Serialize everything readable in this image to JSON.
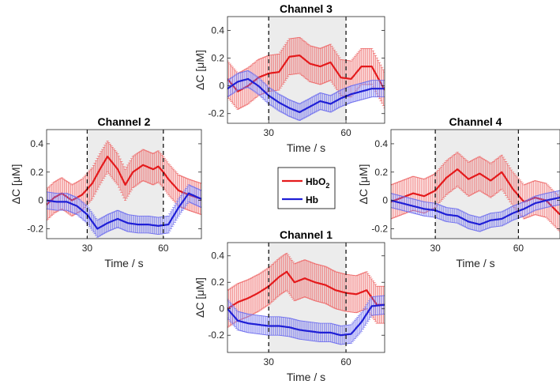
{
  "figure": {
    "legend": {
      "entries": [
        {
          "label": "HbO",
          "subscript": "2",
          "color": "#e41a1c"
        },
        {
          "label": "Hb",
          "subscript": "",
          "color": "#1f1fd6"
        }
      ]
    }
  },
  "colors": {
    "hbo2": "#e41a1c",
    "hb": "#1f1fd6",
    "hbo2_err": "#ee6a6a",
    "hb_err": "#7070ee",
    "stim_shade": "#ececec"
  },
  "chart_data": [
    {
      "id": "ch3",
      "type": "line",
      "title": "Channel 3",
      "xlabel": "Time  / s",
      "ylabel": "ΔC  [μM]",
      "xlim": [
        14,
        75
      ],
      "ylim": [
        -0.27,
        0.5
      ],
      "xticks": [
        30,
        60
      ],
      "yticks": [
        -0.2,
        0,
        0.2,
        0.4
      ],
      "ytick_labels": [
        "-0.2",
        "0",
        "0.2",
        "0.4"
      ],
      "stimulus": [
        30,
        60
      ],
      "series": [
        {
          "name": "HbO2",
          "x": [
            14,
            18,
            22,
            26,
            30,
            34,
            38,
            42,
            46,
            50,
            54,
            58,
            62,
            66,
            70,
            75
          ],
          "y": [
            0.05,
            -0.04,
            0.0,
            0.06,
            0.09,
            0.1,
            0.21,
            0.22,
            0.16,
            0.14,
            0.17,
            0.06,
            0.05,
            0.14,
            0.14,
            -0.03
          ],
          "err": 0.13
        },
        {
          "name": "Hb",
          "x": [
            14,
            18,
            22,
            26,
            30,
            34,
            38,
            42,
            46,
            50,
            54,
            58,
            62,
            66,
            70,
            75
          ],
          "y": [
            -0.02,
            0.03,
            0.05,
            0.0,
            -0.07,
            -0.12,
            -0.16,
            -0.19,
            -0.15,
            -0.11,
            -0.13,
            -0.09,
            -0.06,
            -0.04,
            -0.02,
            -0.02
          ],
          "err": 0.06
        }
      ]
    },
    {
      "id": "ch2",
      "type": "line",
      "title": "Channel 2",
      "xlabel": "Time  / s",
      "ylabel": "ΔC  [μM]",
      "xlim": [
        14,
        75
      ],
      "ylim": [
        -0.27,
        0.5
      ],
      "xticks": [
        30,
        60
      ],
      "yticks": [
        -0.2,
        0,
        0.2,
        0.4
      ],
      "ytick_labels": [
        "-0.2",
        "0",
        "0.2",
        "0.4"
      ],
      "stimulus": [
        30,
        60
      ],
      "series": [
        {
          "name": "HbO2",
          "x": [
            14,
            17,
            20,
            24,
            28,
            32,
            35,
            38,
            42,
            45,
            48,
            52,
            56,
            58,
            60,
            62,
            66,
            70,
            75
          ],
          "y": [
            -0.03,
            0.02,
            0.05,
            0.0,
            0.04,
            0.12,
            0.22,
            0.31,
            0.22,
            0.11,
            0.2,
            0.25,
            0.22,
            0.24,
            0.2,
            0.15,
            0.07,
            0.04,
            0.01
          ],
          "err": 0.11
        },
        {
          "name": "Hb",
          "x": [
            14,
            18,
            22,
            26,
            30,
            34,
            38,
            42,
            46,
            50,
            54,
            58,
            62,
            66,
            70,
            75
          ],
          "y": [
            0.0,
            -0.01,
            -0.01,
            -0.04,
            -0.1,
            -0.2,
            -0.16,
            -0.13,
            -0.16,
            -0.17,
            -0.17,
            -0.18,
            -0.17,
            -0.05,
            0.05,
            0.01
          ],
          "err": 0.06
        }
      ]
    },
    {
      "id": "ch4",
      "type": "line",
      "title": "Channel 4",
      "xlabel": "Time  / s",
      "ylabel": "ΔC  [μM]",
      "xlim": [
        14,
        75
      ],
      "ylim": [
        -0.27,
        0.5
      ],
      "xticks": [
        30,
        60
      ],
      "yticks": [
        -0.2,
        0,
        0.2,
        0.4
      ],
      "ytick_labels": [
        "-0.2",
        "0",
        "0.2",
        "0.4"
      ],
      "stimulus": [
        30,
        60
      ],
      "series": [
        {
          "name": "HbO2",
          "x": [
            14,
            18,
            22,
            26,
            30,
            34,
            38,
            42,
            46,
            50,
            54,
            58,
            62,
            66,
            70,
            75
          ],
          "y": [
            -0.01,
            0.02,
            0.05,
            0.03,
            0.07,
            0.16,
            0.22,
            0.15,
            0.19,
            0.14,
            0.2,
            0.08,
            -0.01,
            0.02,
            0.0,
            -0.1
          ],
          "err": 0.12
        },
        {
          "name": "Hb",
          "x": [
            14,
            18,
            22,
            26,
            30,
            34,
            38,
            42,
            46,
            50,
            54,
            58,
            62,
            66,
            70,
            75
          ],
          "y": [
            0.0,
            -0.02,
            -0.04,
            -0.06,
            -0.07,
            -0.1,
            -0.11,
            -0.15,
            -0.17,
            -0.14,
            -0.13,
            -0.09,
            -0.06,
            -0.02,
            0.0,
            0.02
          ],
          "err": 0.05
        }
      ]
    },
    {
      "id": "ch1",
      "type": "line",
      "title": "Channel 1",
      "xlabel": "Time  / s",
      "ylabel": "ΔC  [μM]",
      "xlim": [
        14,
        75
      ],
      "ylim": [
        -0.33,
        0.5
      ],
      "xticks": [
        30,
        60
      ],
      "yticks": [
        -0.2,
        0,
        0.2,
        0.4
      ],
      "ytick_labels": [
        "-0.2",
        "0",
        "0.2",
        "0.4"
      ],
      "stimulus": [
        30,
        60
      ],
      "series": [
        {
          "name": "HbO2",
          "x": [
            14,
            18,
            22,
            26,
            30,
            34,
            37,
            40,
            44,
            48,
            52,
            56,
            60,
            64,
            68,
            72,
            75
          ],
          "y": [
            0.0,
            0.05,
            0.08,
            0.12,
            0.17,
            0.24,
            0.28,
            0.2,
            0.23,
            0.2,
            0.18,
            0.14,
            0.12,
            0.11,
            0.14,
            0.03,
            0.03
          ],
          "err": 0.14
        },
        {
          "name": "Hb",
          "x": [
            14,
            18,
            22,
            26,
            30,
            34,
            38,
            42,
            46,
            50,
            54,
            58,
            62,
            66,
            70,
            75
          ],
          "y": [
            0.0,
            -0.09,
            -0.11,
            -0.12,
            -0.13,
            -0.13,
            -0.14,
            -0.16,
            -0.17,
            -0.18,
            -0.18,
            -0.2,
            -0.19,
            -0.1,
            0.02,
            0.03
          ],
          "err": 0.07
        }
      ]
    }
  ]
}
